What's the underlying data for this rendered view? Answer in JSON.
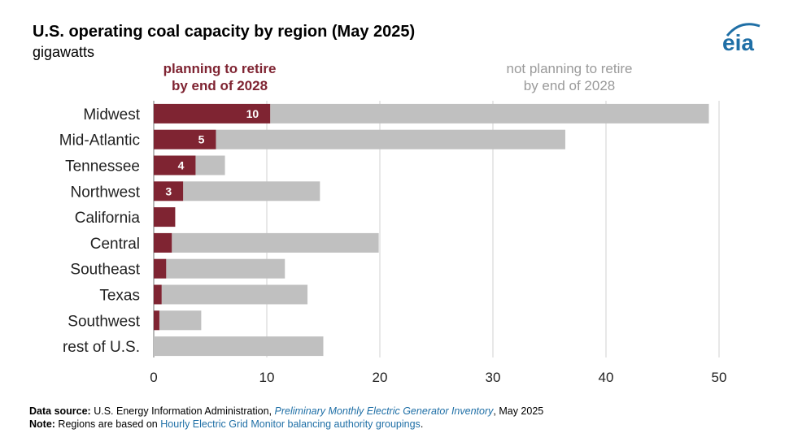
{
  "header": {
    "title": "U.S. operating coal capacity by region (May 2025)",
    "subtitle": "gigawatts",
    "logo_text": "eia"
  },
  "legend": {
    "retire_line1": "planning to retire",
    "retire_line2": "by end of 2028",
    "not_line1": "not planning to retire",
    "not_line2": "by end of 2028"
  },
  "colors": {
    "retire": "#7f2432",
    "not_retire": "#c0c0c0",
    "grid": "#d0d0d0",
    "logo": "#1f6fa6"
  },
  "footer": {
    "source_label": "Data source:",
    "source_text": " U.S. Energy Information Administration, ",
    "source_link": "Preliminary Monthly Electric Generator Inventory",
    "source_date": ", May 2025",
    "note_label": "Note:",
    "note_text": " Regions are based on ",
    "note_link": "Hourly Electric Grid Monitor balancing authority groupings",
    "note_end": "."
  },
  "chart_data": {
    "type": "bar",
    "orientation": "horizontal",
    "stacked": true,
    "title": "U.S. operating coal capacity by region (May 2025)",
    "unit": "gigawatts",
    "categories": [
      "Midwest",
      "Mid-Atlantic",
      "Tennessee",
      "Northwest",
      "California",
      "Central",
      "Southeast",
      "Texas",
      "Southwest",
      "rest of U.S."
    ],
    "series": [
      {
        "name": "planning to retire by end of 2028",
        "values": [
          10.3,
          5.5,
          3.7,
          2.6,
          1.9,
          1.6,
          1.1,
          0.7,
          0.5,
          0
        ]
      },
      {
        "name": "not planning to retire by end of 2028",
        "values": [
          38.8,
          30.9,
          2.6,
          12.1,
          0,
          18.3,
          10.5,
          12.9,
          3.7,
          15.0
        ]
      }
    ],
    "data_labels": [
      "10",
      "5",
      "4",
      "3",
      "",
      "",
      "",
      "",
      "",
      ""
    ],
    "xlim": [
      0,
      50
    ],
    "xticks": [
      0,
      10,
      20,
      30,
      40,
      50
    ],
    "grid": "vertical"
  }
}
